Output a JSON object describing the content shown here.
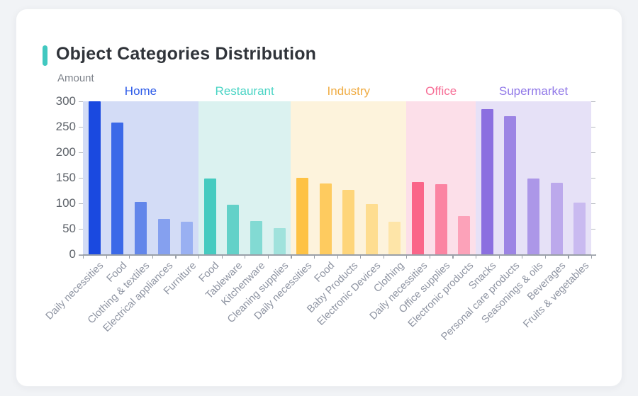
{
  "page": {
    "background_color": "#f1f3f6"
  },
  "card": {
    "background_color": "#ffffff",
    "accent_color": "#41c8c0"
  },
  "header": {
    "title": "Object Categories Distribution"
  },
  "chart_data": {
    "type": "bar",
    "title": "Object Categories Distribution",
    "xlabel": "",
    "ylabel": "Amount",
    "ylim": [
      0,
      300
    ],
    "yticks": [
      0,
      50,
      100,
      150,
      200,
      250,
      300
    ],
    "grid": false,
    "legend_position": "none",
    "axis": {
      "line_color": "#9aa0a8",
      "ytick_label_color": "#5f646b",
      "xtick_label_color": "#8d93a1"
    },
    "groups": [
      {
        "name": "Home",
        "label_color": "#2d5be8",
        "band_color": "#d3dcf6",
        "bars": [
          {
            "label": "Daily necessities",
            "value": 300,
            "color": "#1a49e0"
          },
          {
            "label": "Food",
            "value": 258,
            "color": "#3b69e8"
          },
          {
            "label": "Clothing & textiles",
            "value": 103,
            "color": "#6286ea"
          },
          {
            "label": "Electrical appliances",
            "value": 69,
            "color": "#85a0ef"
          },
          {
            "label": "Furniture",
            "value": 64,
            "color": "#99b0f2"
          }
        ]
      },
      {
        "name": "Restaurant",
        "label_color": "#4ad4c4",
        "band_color": "#dbf2f0",
        "bars": [
          {
            "label": "Food",
            "value": 149,
            "color": "#46cbc0"
          },
          {
            "label": "Tableware",
            "value": 97,
            "color": "#63d1c8"
          },
          {
            "label": "Kitchenware",
            "value": 65,
            "color": "#82dad3"
          },
          {
            "label": "Cleaning supplies",
            "value": 51,
            "color": "#a0e2dc"
          }
        ]
      },
      {
        "name": "Industry",
        "label_color": "#f0ad45",
        "band_color": "#fdf3dc",
        "bars": [
          {
            "label": "Daily necessities",
            "value": 150,
            "color": "#fec244"
          },
          {
            "label": "Food",
            "value": 139,
            "color": "#fecb5f"
          },
          {
            "label": "Baby Products",
            "value": 126,
            "color": "#fed57a"
          },
          {
            "label": "Electronic Devices",
            "value": 99,
            "color": "#fedd90"
          },
          {
            "label": "Clothing",
            "value": 64,
            "color": "#fee5a8"
          }
        ]
      },
      {
        "name": "Office",
        "label_color": "#f76e96",
        "band_color": "#fcdfe9",
        "bars": [
          {
            "label": "Daily necessities",
            "value": 142,
            "color": "#fa6589"
          },
          {
            "label": "Office supplies",
            "value": 138,
            "color": "#fb84a2"
          },
          {
            "label": "Electronic products",
            "value": 75,
            "color": "#fca2b9"
          }
        ]
      },
      {
        "name": "Supermarket",
        "label_color": "#9179e8",
        "band_color": "#e6e1f7",
        "bars": [
          {
            "label": "Snacks",
            "value": 285,
            "color": "#8b6fe0"
          },
          {
            "label": "Personal care products",
            "value": 271,
            "color": "#9c84e4"
          },
          {
            "label": "Seasonings & oils",
            "value": 149,
            "color": "#ac97e8"
          },
          {
            "label": "Beverages",
            "value": 140,
            "color": "#bca9ec"
          },
          {
            "label": "Fruits & vegetables",
            "value": 102,
            "color": "#c9baf0"
          }
        ]
      }
    ]
  }
}
